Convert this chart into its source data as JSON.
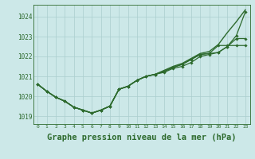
{
  "background_color": "#cce8e8",
  "grid_color": "#aacece",
  "line_color": "#2d6a2d",
  "xlabel": "Graphe pression niveau de la mer (hPa)",
  "xlim": [
    -0.5,
    23.5
  ],
  "ylim": [
    1018.6,
    1024.6
  ],
  "yticks": [
    1019,
    1020,
    1021,
    1022,
    1023,
    1024
  ],
  "xticks": [
    0,
    1,
    2,
    3,
    4,
    5,
    6,
    7,
    8,
    9,
    10,
    11,
    12,
    13,
    14,
    15,
    16,
    17,
    18,
    19,
    20,
    21,
    22,
    23
  ],
  "lines": [
    {
      "y": [
        1020.6,
        1020.25,
        1019.95,
        1019.75,
        1019.45,
        1019.3,
        1019.15,
        1019.3,
        1019.5,
        1020.35,
        1020.5,
        1020.8,
        1021.0,
        1021.1,
        1021.2,
        1021.4,
        1021.5,
        1021.7,
        1022.0,
        1022.1,
        1022.2,
        1022.5,
        1022.9,
        1022.9
      ],
      "marker": true,
      "lw": 0.9
    },
    {
      "y": [
        1020.6,
        1020.25,
        1019.95,
        1019.75,
        1019.45,
        1019.3,
        1019.15,
        1019.3,
        1019.5,
        1020.35,
        1020.5,
        1020.8,
        1021.0,
        1021.1,
        1021.25,
        1021.45,
        1021.6,
        1021.85,
        1022.1,
        1022.15,
        1022.55,
        1022.55,
        1022.55,
        1022.55
      ],
      "marker": true,
      "lw": 0.9
    },
    {
      "y": [
        1020.6,
        1020.25,
        1019.95,
        1019.75,
        1019.45,
        1019.3,
        1019.15,
        1019.3,
        1019.5,
        1020.35,
        1020.5,
        1020.8,
        1021.0,
        1021.1,
        1021.25,
        1021.45,
        1021.6,
        1021.85,
        1022.1,
        1022.15,
        1022.2,
        1022.5,
        1023.05,
        1024.25
      ],
      "marker": true,
      "lw": 0.9
    },
    {
      "y": [
        1020.6,
        1020.25,
        1019.95,
        1019.75,
        1019.45,
        1019.3,
        1019.15,
        1019.3,
        1019.5,
        1020.35,
        1020.5,
        1020.8,
        1021.0,
        1021.1,
        1021.3,
        1021.5,
        1021.65,
        1021.9,
        1022.15,
        1022.25,
        1022.6,
        1023.2,
        1023.75,
        1024.35
      ],
      "marker": false,
      "lw": 1.0
    }
  ]
}
